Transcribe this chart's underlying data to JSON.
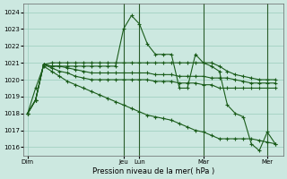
{
  "background_color": "#cce8e0",
  "grid_color": "#99ccbb",
  "line_color": "#1a5c1a",
  "xlabel": "Pression niveau de la mer( hPa )",
  "ylim": [
    1015.5,
    1024.5
  ],
  "yticks": [
    1016,
    1017,
    1018,
    1019,
    1020,
    1021,
    1022,
    1023,
    1024
  ],
  "xtick_labels": [
    "Dim",
    "Jeu",
    "Lun",
    "Mar",
    "Mer"
  ],
  "xtick_positions": [
    0,
    12,
    14,
    22,
    30
  ],
  "xlim": [
    -0.5,
    32
  ],
  "vline_positions": [
    12,
    14,
    22,
    30
  ],
  "series": [
    [
      1018.0,
      1018.8,
      1020.9,
      1020.8,
      1020.8,
      1020.8,
      1020.8,
      1020.8,
      1020.8,
      1020.8,
      1020.8,
      1020.8,
      1023.0,
      1023.8,
      1023.3,
      1022.1,
      1021.5,
      1021.5,
      1021.5,
      1019.5,
      1019.5,
      1021.5,
      1021.0,
      1020.8,
      1020.5,
      1018.5,
      1018.0,
      1017.8,
      1016.2,
      1015.8,
      1016.9,
      1016.2
    ],
    [
      1018.0,
      1018.8,
      1020.9,
      1021.0,
      1021.0,
      1021.0,
      1021.0,
      1021.0,
      1021.0,
      1021.0,
      1021.0,
      1021.0,
      1021.0,
      1021.0,
      1021.0,
      1021.0,
      1021.0,
      1021.0,
      1021.0,
      1021.0,
      1021.0,
      1021.0,
      1021.0,
      1021.0,
      1020.8,
      1020.5,
      1020.3,
      1020.2,
      1020.1,
      1020.0,
      1020.0,
      1020.0
    ],
    [
      1018.0,
      1018.8,
      1020.9,
      1020.8,
      1020.8,
      1020.7,
      1020.6,
      1020.5,
      1020.4,
      1020.4,
      1020.4,
      1020.4,
      1020.4,
      1020.4,
      1020.4,
      1020.4,
      1020.3,
      1020.3,
      1020.3,
      1020.2,
      1020.2,
      1020.2,
      1020.2,
      1020.1,
      1020.1,
      1020.1,
      1020.0,
      1019.9,
      1019.8,
      1019.8,
      1019.8,
      1019.8
    ],
    [
      1018.0,
      1018.8,
      1020.9,
      1020.7,
      1020.5,
      1020.4,
      1020.2,
      1020.1,
      1020.0,
      1020.0,
      1020.0,
      1020.0,
      1020.0,
      1020.0,
      1020.0,
      1020.0,
      1019.9,
      1019.9,
      1019.9,
      1019.8,
      1019.8,
      1019.8,
      1019.7,
      1019.7,
      1019.5,
      1019.5,
      1019.5,
      1019.5,
      1019.5,
      1019.5,
      1019.5,
      1019.5
    ],
    [
      1018.0,
      1019.5,
      1020.8,
      1020.5,
      1020.2,
      1019.9,
      1019.7,
      1019.5,
      1019.3,
      1019.1,
      1018.9,
      1018.7,
      1018.5,
      1018.3,
      1018.1,
      1017.9,
      1017.8,
      1017.7,
      1017.6,
      1017.4,
      1017.2,
      1017.0,
      1016.9,
      1016.7,
      1016.5,
      1016.5,
      1016.5,
      1016.5,
      1016.5,
      1016.4,
      1016.3,
      1016.2
    ]
  ]
}
